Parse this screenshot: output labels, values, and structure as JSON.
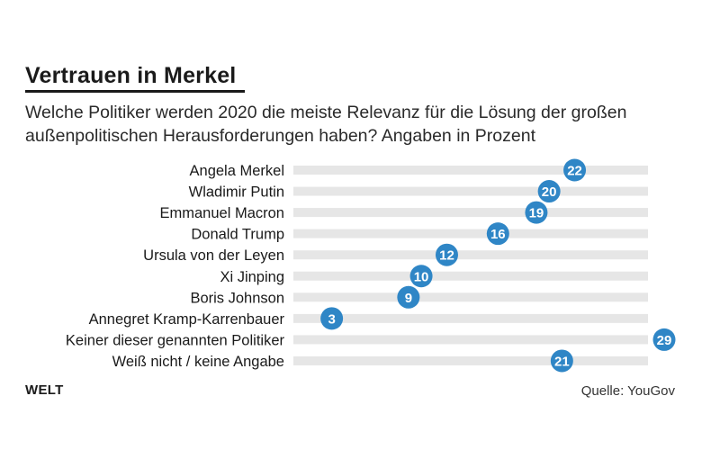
{
  "title": "Vertrauen in Merkel",
  "subtitle": "Welche Politiker werden 2020 die meiste Relevanz für die Lösung der großen außenpolitischen Herausforderungen haben? Angaben in Prozent",
  "brand": "WELT",
  "source": "Quelle: YouGov",
  "colors": {
    "marker": "#2f86c6",
    "track": "#e6e6e6",
    "text": "#1a1a1a"
  },
  "chart_data": {
    "type": "bar",
    "categories": [
      "Angela Merkel",
      "Wladimir Putin",
      "Emmanuel Macron",
      "Donald Trump",
      "Ursula von der Leyen",
      "Xi Jinping",
      "Boris Johnson",
      "Annegret Kramp-Karrenbauer",
      "Keiner dieser genannten Politiker",
      "Weiß nicht / keine Angabe"
    ],
    "values": [
      22,
      20,
      19,
      16,
      12,
      10,
      9,
      3,
      29,
      21
    ],
    "xlim": [
      0,
      29
    ],
    "orientation": "horizontal"
  }
}
